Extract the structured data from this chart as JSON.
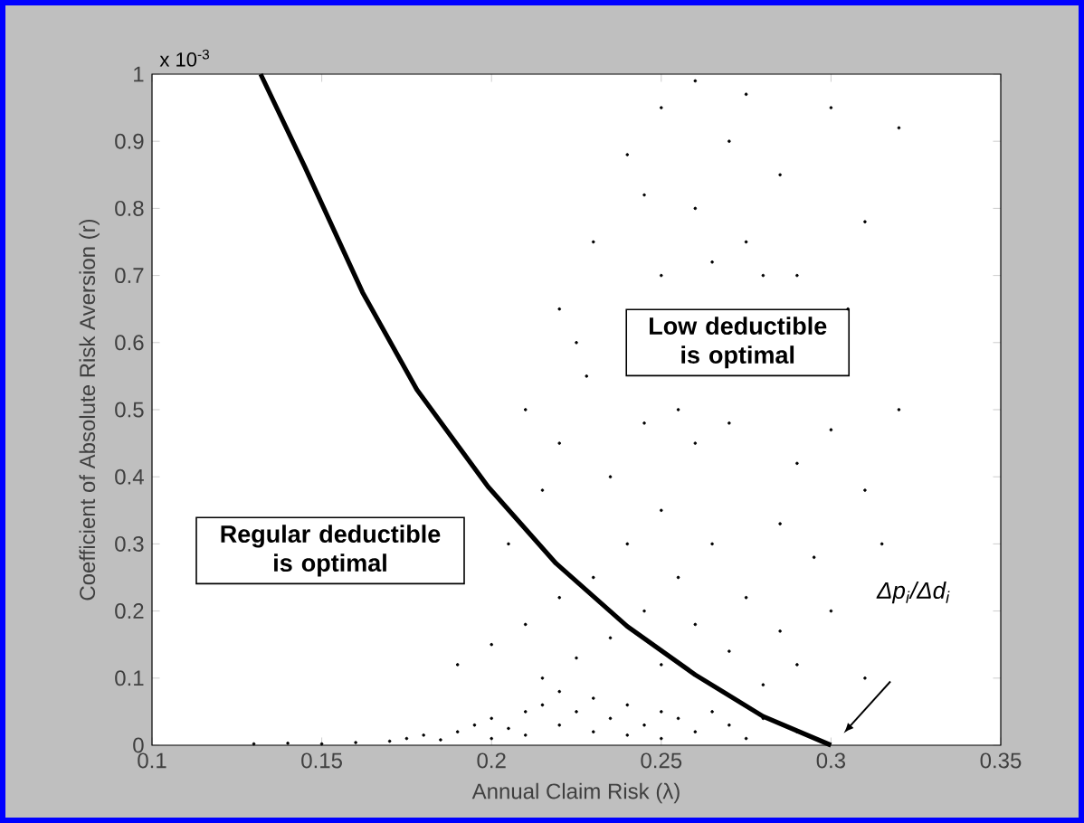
{
  "chart_data": {
    "type": "scatter",
    "xlabel": "Annual Claim Risk (λ)",
    "ylabel": "Coefficient of Absolute Risk Aversion (r)",
    "xlim": [
      0.1,
      0.35
    ],
    "xticks": [
      0.1,
      0.15,
      0.2,
      0.25,
      0.3,
      0.35
    ],
    "ylim": [
      0,
      1
    ],
    "yticks": [
      0,
      0.1,
      0.2,
      0.3,
      0.4,
      0.5,
      0.6,
      0.7,
      0.8,
      0.9,
      1
    ],
    "grid": false,
    "annotations": [
      "x 10$^{-3}$",
      "Regular deductible is optimal",
      "Low deductible is optimal",
      "Δp$_{i}$/Δd$_{i}$"
    ],
    "series": [
      {
        "color": "#000000",
        "marker": "circle",
        "x": [
          0.13,
          0.14,
          0.15,
          0.16,
          0.17,
          0.175,
          0.18,
          0.185,
          0.19,
          0.195,
          0.2,
          0.2,
          0.205,
          0.21,
          0.21,
          0.215,
          0.22,
          0.22,
          0.225,
          0.23,
          0.23,
          0.235,
          0.24,
          0.24,
          0.245,
          0.25,
          0.25,
          0.255,
          0.26,
          0.265,
          0.27,
          0.275,
          0.28,
          0.29,
          0.19,
          0.2,
          0.21,
          0.215,
          0.22,
          0.225,
          0.23,
          0.235,
          0.24,
          0.245,
          0.25,
          0.25,
          0.255,
          0.26,
          0.265,
          0.27,
          0.275,
          0.28,
          0.285,
          0.29,
          0.3,
          0.31,
          0.205,
          0.215,
          0.22,
          0.228,
          0.235,
          0.225,
          0.245,
          0.25,
          0.255,
          0.26,
          0.26,
          0.265,
          0.27,
          0.27,
          0.275,
          0.28,
          0.285,
          0.29,
          0.29,
          0.3,
          0.3,
          0.31,
          0.31,
          0.32,
          0.32,
          0.24,
          0.25,
          0.26,
          0.275,
          0.23,
          0.22,
          0.21,
          0.245,
          0.285,
          0.295,
          0.305,
          0.315
        ],
        "values": [
          0.002,
          0.003,
          0.002,
          0.004,
          0.006,
          0.01,
          0.015,
          0.008,
          0.02,
          0.03,
          0.01,
          0.04,
          0.025,
          0.05,
          0.015,
          0.06,
          0.03,
          0.08,
          0.05,
          0.02,
          0.07,
          0.04,
          0.06,
          0.015,
          0.03,
          0.05,
          0.01,
          0.04,
          0.02,
          0.05,
          0.03,
          0.01,
          0.04,
          0.02,
          0.12,
          0.15,
          0.18,
          0.1,
          0.22,
          0.13,
          0.25,
          0.16,
          0.3,
          0.2,
          0.12,
          0.35,
          0.25,
          0.18,
          0.3,
          0.14,
          0.22,
          0.09,
          0.17,
          0.12,
          0.2,
          0.1,
          0.3,
          0.38,
          0.45,
          0.55,
          0.4,
          0.6,
          0.48,
          0.7,
          0.5,
          0.45,
          0.8,
          0.72,
          0.48,
          0.9,
          0.75,
          0.7,
          0.85,
          0.42,
          0.7,
          0.47,
          0.95,
          0.38,
          0.78,
          0.92,
          0.5,
          0.88,
          0.95,
          0.99,
          0.97,
          0.75,
          0.65,
          0.5,
          0.82,
          0.33,
          0.28,
          0.65,
          0.3
        ]
      },
      {
        "type": "line",
        "color": "#000000",
        "marker": "none",
        "line_style": "solid",
        "x": [
          0.132,
          0.145,
          0.162,
          0.178,
          0.199,
          0.219,
          0.24,
          0.26,
          0.28,
          0.3
        ],
        "values": [
          1.0,
          0.862,
          0.675,
          0.53,
          0.385,
          0.271,
          0.177,
          0.105,
          0.043,
          0
        ]
      }
    ]
  }
}
